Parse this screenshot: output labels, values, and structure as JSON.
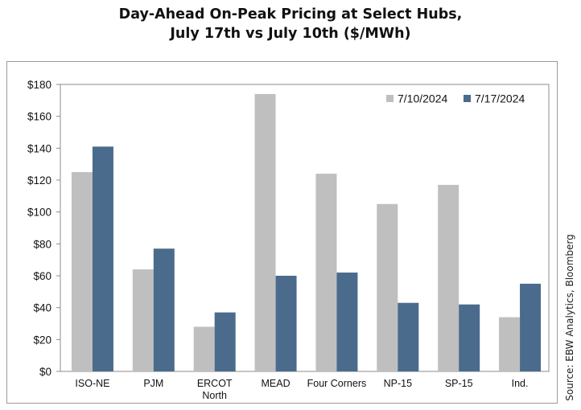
{
  "chart_data": {
    "type": "bar",
    "title_line1": "Day-Ahead On-Peak Pricing at Select Hubs,",
    "title_line2": "July 17th vs July 10th ($/MWh)",
    "categories": [
      "ISO-NE",
      "PJM",
      "ERCOT North",
      "MEAD",
      "Four Corners",
      "NP-15",
      "SP-15",
      "Ind."
    ],
    "category_lines": [
      [
        "ISO-NE"
      ],
      [
        "PJM"
      ],
      [
        "ERCOT",
        "North"
      ],
      [
        "MEAD"
      ],
      [
        "Four Corners"
      ],
      [
        "NP-15"
      ],
      [
        "SP-15"
      ],
      [
        "Ind."
      ]
    ],
    "series": [
      {
        "name": "7/10/2024",
        "color": "#bfbfbf",
        "values": [
          125,
          64,
          28,
          174,
          124,
          105,
          117,
          34
        ]
      },
      {
        "name": "7/17/2024",
        "color": "#4a6b8c",
        "values": [
          141,
          77,
          37,
          60,
          62,
          43,
          42,
          55
        ]
      }
    ],
    "ylim": [
      0,
      180
    ],
    "yticks": [
      0,
      20,
      40,
      60,
      80,
      100,
      120,
      140,
      160,
      180
    ],
    "ytick_labels": [
      "$0",
      "$20",
      "$40",
      "$60",
      "$80",
      "$100",
      "$120",
      "$140",
      "$160",
      "$180"
    ],
    "legend_position": "top-right",
    "grid": false
  },
  "source": "Source: EBW Analytics, Bloomberg"
}
